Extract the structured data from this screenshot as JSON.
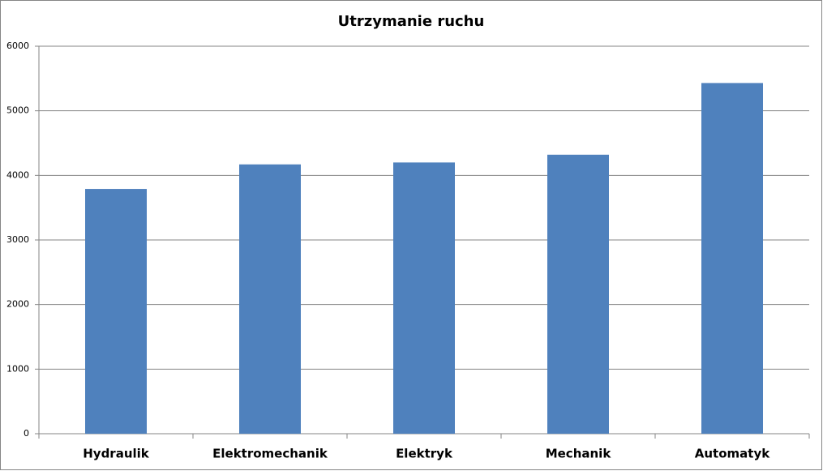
{
  "chart_data": {
    "type": "bar",
    "title": "Utrzymanie ruchu",
    "categories": [
      "Hydraulik",
      "Elektromechanik",
      "Elektryk",
      "Mechanik",
      "Automatyk"
    ],
    "values": [
      3790,
      4170,
      4200,
      4320,
      5430
    ],
    "color": "#4f81bd",
    "ylim": [
      0,
      6000
    ],
    "yticks": [
      0,
      1000,
      2000,
      3000,
      4000,
      5000,
      6000
    ],
    "grid": true
  }
}
